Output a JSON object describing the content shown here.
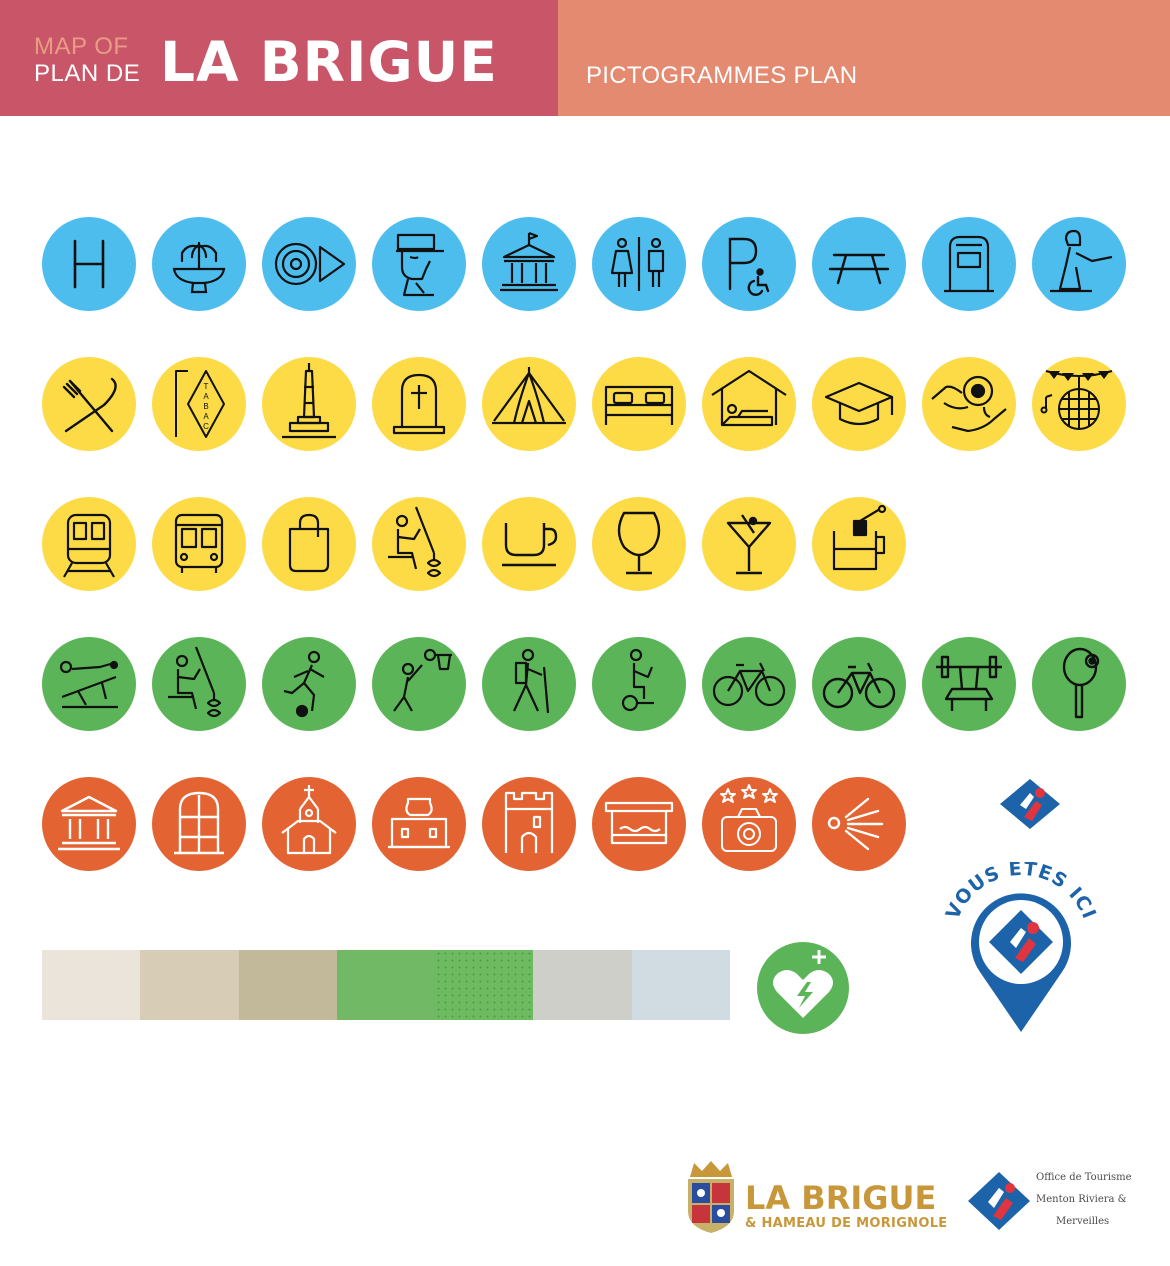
{
  "header": {
    "map_of": "MAP OF",
    "plan_de": "PLAN DE",
    "title": "LA BRIGUE",
    "subtitle": "PICTOGRAMMES PLAN",
    "colors": {
      "left_band": "#c95668",
      "right_band": "#e48a70",
      "map_of_text": "#e89c84"
    }
  },
  "icon_colors": {
    "services": "#4dbdee",
    "amenities": "#fcdb47",
    "sports": "#5bb558",
    "heritage": "#e36432"
  },
  "icons": {
    "services": [
      "h-letter-icon",
      "fountain-icon",
      "disc-play-icon",
      "police-officer-icon",
      "town-hall-icon",
      "toilets-icon",
      "accessible-parking-icon",
      "picnic-table-icon",
      "mailbox-icon",
      "fencing-icon"
    ],
    "amenities": [
      "restaurant-icon",
      "tabac-icon",
      "monument-icon",
      "cemetery-icon",
      "camping-icon",
      "bed-icon",
      "shelter-icon",
      "education-icon",
      "wellness-icon",
      "party-icon"
    ],
    "transport_shops": [
      "train-icon",
      "bus-icon",
      "shop-icon",
      "fisherman-icon",
      "coffee-icon",
      "wine-glass-icon",
      "cocktail-icon",
      "tea-icon"
    ],
    "sports": [
      "fitness-trail-icon",
      "fishing-icon",
      "football-icon",
      "basketball-icon",
      "hiking-icon",
      "segway-icon",
      "bicycle-icon",
      "mountain-bike-icon",
      "weightlifting-icon",
      "tennis-icon"
    ],
    "heritage": [
      "museum-icon",
      "chapel-door-icon",
      "church-icon",
      "fort-icon",
      "castle-tower-icon",
      "covered-wash-house-icon",
      "photo-spot-icon",
      "viewpoint-icon"
    ]
  },
  "palette": [
    "#eae4da",
    "#d7cdb6",
    "#c2b99a",
    "#71b964",
    "#6dba61",
    "#cfcfca",
    "#d1dbe2"
  ],
  "aed_color": "#5bb558",
  "you_are_here": {
    "label": "VOUS ÊTES ICI",
    "color": "#1d63a9",
    "accent": "#e0353f"
  },
  "footer": {
    "brand": "LA BRIGUE",
    "brand_sub": "& HAMEAU DE MORIGNOLE",
    "ot_lines": [
      "Office de Tourisme",
      "Menton Riviera &",
      "Merveilles"
    ]
  }
}
